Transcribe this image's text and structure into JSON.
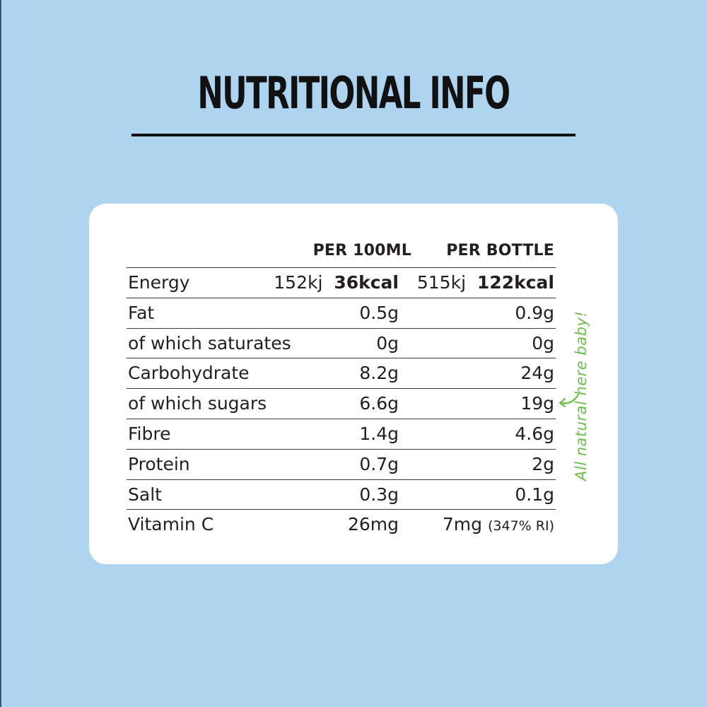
{
  "title": "NUTRITIONAL INFO",
  "table": {
    "col1_header": "PER 100ML",
    "col2_header": "PER BOTTLE",
    "rows": [
      {
        "label": "Energy",
        "v1_kj": "152kj",
        "v1_kcal": "36kcal",
        "v2_kj": "515kj",
        "v2_kcal": "122kcal"
      },
      {
        "label": "Fat",
        "v1": "0.5g",
        "v2": "0.9g"
      },
      {
        "label": "of which saturates",
        "v1": "0g",
        "v2": "0g"
      },
      {
        "label": "Carbohydrate",
        "v1": "8.2g",
        "v2": "24g"
      },
      {
        "label": "of which sugars",
        "v1": "6.6g",
        "v2": "19g"
      },
      {
        "label": "Fibre",
        "v1": "1.4g",
        "v2": "4.6g"
      },
      {
        "label": "Protein",
        "v1": "0.7g",
        "v2": "2g"
      },
      {
        "label": "Salt",
        "v1": "0.3g",
        "v2": "0.1g"
      },
      {
        "label": "Vitamin C",
        "v1": "26mg",
        "v2": "7mg",
        "v2_note": "(347% RI)"
      }
    ]
  },
  "side_note": "All natural here baby!",
  "colors": {
    "background": "#aed4f0",
    "card": "#ffffff",
    "note": "#6cc04a"
  }
}
